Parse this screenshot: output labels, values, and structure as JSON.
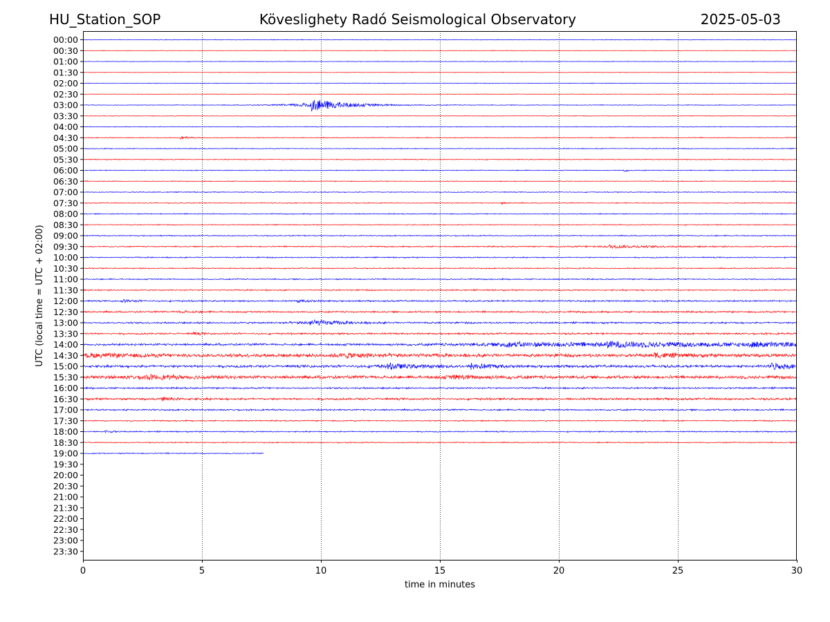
{
  "chart_data": {
    "type": "line",
    "title_left": "HU_Station_SOP",
    "title_center": "Köveslighety Radó Seismological Observatory",
    "title_right": "2025-05-03",
    "xlabel": "time in minutes",
    "ylabel": "UTC (local time = UTC + 02:00)",
    "xlim": [
      0,
      30
    ],
    "x_ticks": [
      "0",
      "5",
      "10",
      "15",
      "20",
      "25",
      "30"
    ],
    "x_tick_values": [
      0,
      5,
      10,
      15,
      20,
      25,
      30
    ],
    "vertical_gridlines_at": [
      5,
      10,
      15,
      20,
      25
    ],
    "grid": "vertical dotted",
    "row_labels": [
      "00:00",
      "00:30",
      "01:00",
      "01:30",
      "02:00",
      "02:30",
      "03:00",
      "03:30",
      "04:00",
      "04:30",
      "05:00",
      "05:30",
      "06:00",
      "06:30",
      "07:00",
      "07:30",
      "08:00",
      "08:30",
      "09:00",
      "09:30",
      "10:00",
      "10:30",
      "11:00",
      "11:30",
      "12:00",
      "12:30",
      "13:00",
      "13:30",
      "14:00",
      "14:30",
      "15:00",
      "15:30",
      "16:00",
      "16:30",
      "17:00",
      "17:30",
      "18:00",
      "18:30",
      "19:00",
      "19:30",
      "20:00",
      "20:30",
      "21:00",
      "21:30",
      "22:00",
      "22:30",
      "23:00",
      "23:30"
    ],
    "colors": [
      "#0000ff",
      "#ff0000"
    ],
    "recorded_rows": 39,
    "last_row_end_minutes": 7.6,
    "rows": [
      {
        "label": "00:00",
        "noise": 0.55,
        "events": []
      },
      {
        "label": "00:30",
        "noise": 0.45,
        "events": []
      },
      {
        "label": "01:00",
        "noise": 0.5,
        "events": []
      },
      {
        "label": "01:30",
        "noise": 0.45,
        "events": []
      },
      {
        "label": "02:00",
        "noise": 0.55,
        "events": []
      },
      {
        "label": "02:30",
        "noise": 0.5,
        "events": []
      },
      {
        "label": "03:00",
        "noise": 0.55,
        "events": [
          {
            "t": 9.6,
            "amp": 9,
            "decay": 1.4
          }
        ]
      },
      {
        "label": "03:30",
        "noise": 0.5,
        "events": []
      },
      {
        "label": "04:00",
        "noise": 0.6,
        "events": []
      },
      {
        "label": "04:30",
        "noise": 0.7,
        "events": [
          {
            "t": 4.1,
            "amp": 1.6,
            "decay": 0.4
          }
        ]
      },
      {
        "label": "05:00",
        "noise": 0.7,
        "events": []
      },
      {
        "label": "05:30",
        "noise": 0.75,
        "events": []
      },
      {
        "label": "06:00",
        "noise": 0.7,
        "events": [
          {
            "t": 22.7,
            "amp": 1.8,
            "decay": 0.2
          }
        ]
      },
      {
        "label": "06:30",
        "noise": 0.7,
        "events": []
      },
      {
        "label": "07:00",
        "noise": 0.75,
        "events": []
      },
      {
        "label": "07:30",
        "noise": 0.75,
        "events": [
          {
            "t": 17.6,
            "amp": 1.8,
            "decay": 0.2
          }
        ]
      },
      {
        "label": "08:00",
        "noise": 0.8,
        "events": []
      },
      {
        "label": "08:30",
        "noise": 0.8,
        "events": []
      },
      {
        "label": "09:00",
        "noise": 0.9,
        "events": []
      },
      {
        "label": "09:30",
        "noise": 1.0,
        "events": [
          {
            "t": 22.1,
            "amp": 2.2,
            "decay": 1.8
          }
        ]
      },
      {
        "label": "10:00",
        "noise": 0.95,
        "events": []
      },
      {
        "label": "10:30",
        "noise": 0.95,
        "events": []
      },
      {
        "label": "11:00",
        "noise": 1.0,
        "events": []
      },
      {
        "label": "11:30",
        "noise": 1.1,
        "events": []
      },
      {
        "label": "12:00",
        "noise": 1.3,
        "events": [
          {
            "t": 1.6,
            "amp": 1.6,
            "decay": 0.6
          },
          {
            "t": 9.0,
            "amp": 1.6,
            "decay": 0.6
          }
        ]
      },
      {
        "label": "12:30",
        "noise": 1.4,
        "events": [
          {
            "t": 4.0,
            "amp": 1.8,
            "decay": 0.5
          }
        ]
      },
      {
        "label": "13:00",
        "noise": 1.4,
        "events": [
          {
            "t": 9.5,
            "amp": 4.0,
            "decay": 1.2
          }
        ]
      },
      {
        "label": "13:30",
        "noise": 1.5,
        "events": [
          {
            "t": 4.6,
            "amp": 1.8,
            "decay": 0.3
          }
        ]
      },
      {
        "label": "14:00",
        "noise": 1.8,
        "events": [
          {
            "t": 17.5,
            "amp": 2.8,
            "decay": 4.0
          },
          {
            "t": 22.0,
            "amp": 3.2,
            "decay": 4.0
          },
          {
            "t": 28.0,
            "amp": 2.8,
            "decay": 2.0
          }
        ]
      },
      {
        "label": "14:30",
        "noise": 2.8,
        "events": [
          {
            "t": 0.2,
            "amp": 2.0,
            "decay": 2.0
          },
          {
            "t": 11.0,
            "amp": 2.5,
            "decay": 1.5
          },
          {
            "t": 24.0,
            "amp": 3.0,
            "decay": 1.0
          }
        ]
      },
      {
        "label": "15:00",
        "noise": 2.2,
        "events": [
          {
            "t": 12.8,
            "amp": 3.5,
            "decay": 1.2
          },
          {
            "t": 16.3,
            "amp": 4.0,
            "decay": 0.8
          },
          {
            "t": 28.9,
            "amp": 4.5,
            "decay": 0.8
          }
        ]
      },
      {
        "label": "15:30",
        "noise": 2.6,
        "events": [
          {
            "t": 2.5,
            "amp": 2.2,
            "decay": 2.0
          },
          {
            "t": 15.5,
            "amp": 2.2,
            "decay": 1.5
          }
        ]
      },
      {
        "label": "16:00",
        "noise": 1.4,
        "events": []
      },
      {
        "label": "16:30",
        "noise": 1.8,
        "events": [
          {
            "t": 3.3,
            "amp": 2.4,
            "decay": 0.5
          }
        ]
      },
      {
        "label": "17:00",
        "noise": 1.3,
        "events": []
      },
      {
        "label": "17:30",
        "noise": 1.0,
        "events": []
      },
      {
        "label": "18:00",
        "noise": 1.0,
        "events": [
          {
            "t": 0.9,
            "amp": 1.8,
            "decay": 0.3
          }
        ]
      },
      {
        "label": "18:30",
        "noise": 0.9,
        "events": []
      },
      {
        "label": "19:00",
        "noise": 0.9,
        "events": []
      }
    ]
  }
}
